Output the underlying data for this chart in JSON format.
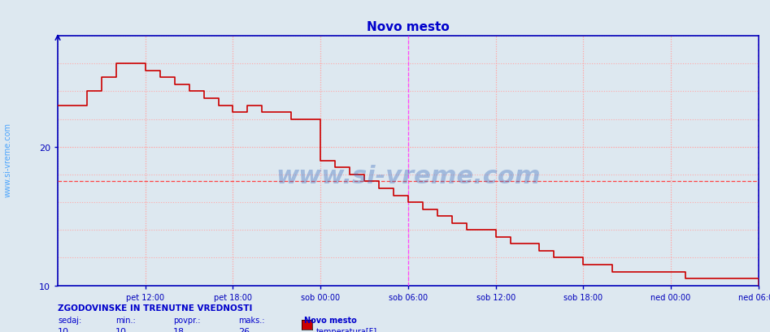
{
  "title": "Novo mesto",
  "title_color": "#0000cc",
  "bg_color": "#dde8f0",
  "plot_bg_color": "#dde8f0",
  "grid_color": "#ffaaaa",
  "axis_color": "#0000bb",
  "ylim": [
    10,
    28
  ],
  "yticks": [
    10,
    20
  ],
  "x_tick_positions": [
    3,
    6,
    9,
    12,
    15,
    18,
    21,
    24
  ],
  "x_labels": [
    "pet 12:00",
    "pet 18:00",
    "sob 00:00",
    "sob 06:00",
    "sob 12:00",
    "sob 18:00",
    "ned 00:00",
    "ned 06:00"
  ],
  "vline_positions": [
    12,
    24
  ],
  "vline_color": "#ff44ff",
  "hline_y": 17.5,
  "hline_color": "#ff4444",
  "line_color": "#cc0000",
  "watermark": "www.si-vreme.com",
  "watermark_color": "#3366bb",
  "sidebar_text": "www.si-vreme.com",
  "sidebar_color": "#3399ff",
  "footer_line1": "ZGODOVINSKE IN TRENUTNE VREDNOSTI",
  "footer_sedaj": "sedaj:",
  "footer_min": "min.:",
  "footer_povpr": "povpr.:",
  "footer_maks": "maks.:",
  "footer_station": "Novo mesto",
  "footer_series": "temperatura[F]",
  "footer_vals": [
    10,
    10,
    18,
    26
  ],
  "footer_color": "#0000cc",
  "legend_color": "#cc0000",
  "temp_data_x": [
    0,
    0.5,
    1.0,
    1.5,
    2.0,
    2.5,
    3.0,
    3.5,
    4.0,
    4.5,
    5.0,
    5.5,
    6.0,
    6.5,
    7.0,
    7.5,
    8.0,
    8.5,
    9.0,
    9.5,
    10.0,
    10.5,
    11.0,
    11.5,
    12.0,
    12.5,
    13.0,
    13.5,
    14.0,
    14.5,
    15.0,
    15.5,
    16.0,
    16.5,
    17.0,
    17.5,
    18.0,
    18.5,
    19.0,
    19.5,
    20.0,
    20.5,
    21.0,
    21.5,
    22.0,
    22.5,
    23.0,
    23.5,
    24.0
  ],
  "temp_data_y": [
    23.0,
    23.0,
    24.0,
    25.0,
    26.0,
    26.0,
    25.5,
    25.0,
    24.5,
    24.0,
    23.5,
    23.0,
    22.5,
    23.0,
    22.5,
    22.5,
    22.0,
    22.0,
    19.0,
    18.5,
    18.0,
    17.5,
    17.0,
    16.5,
    16.0,
    15.5,
    15.0,
    14.5,
    14.0,
    14.0,
    13.5,
    13.0,
    13.0,
    12.5,
    12.0,
    12.0,
    11.5,
    11.5,
    11.0,
    11.0,
    11.0,
    11.0,
    11.0,
    10.5,
    10.5,
    10.5,
    10.5,
    10.5,
    10.0
  ]
}
